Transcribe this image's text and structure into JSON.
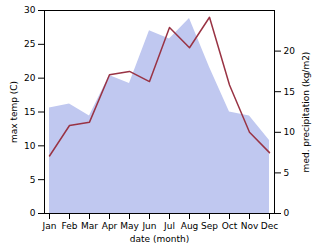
{
  "chart_data": {
    "type": "line",
    "categories": [
      "Jan",
      "Feb",
      "Mar",
      "Apr",
      "May",
      "Jun",
      "Jul",
      "Aug",
      "Sep",
      "Oct",
      "Nov",
      "Dec"
    ],
    "xlabel": "date (month)",
    "ylabel": "max temp (C)",
    "y2label": "med. precipitation (kg/m2)",
    "series": [
      {
        "type": "line",
        "color": "#993344",
        "values": [
          8.5,
          13.0,
          13.5,
          20.5,
          21.0,
          19.5,
          27.5,
          24.5,
          29.0,
          19.0,
          12.0,
          9.0
        ]
      },
      {
        "type": "area",
        "color": "#c0c8f0",
        "axis": "y2",
        "values": [
          13.0,
          13.5,
          12.0,
          17.0,
          16.0,
          22.5,
          21.5,
          24.0,
          18.0,
          12.5,
          12.0,
          9.0
        ]
      }
    ],
    "ylim": [
      0,
      30
    ],
    "yticks": [
      0,
      5,
      10,
      15,
      20,
      25,
      30
    ],
    "y2lim": [
      0,
      25
    ],
    "y2ticks": [
      0,
      5,
      10,
      15,
      20
    ],
    "grid": false
  }
}
